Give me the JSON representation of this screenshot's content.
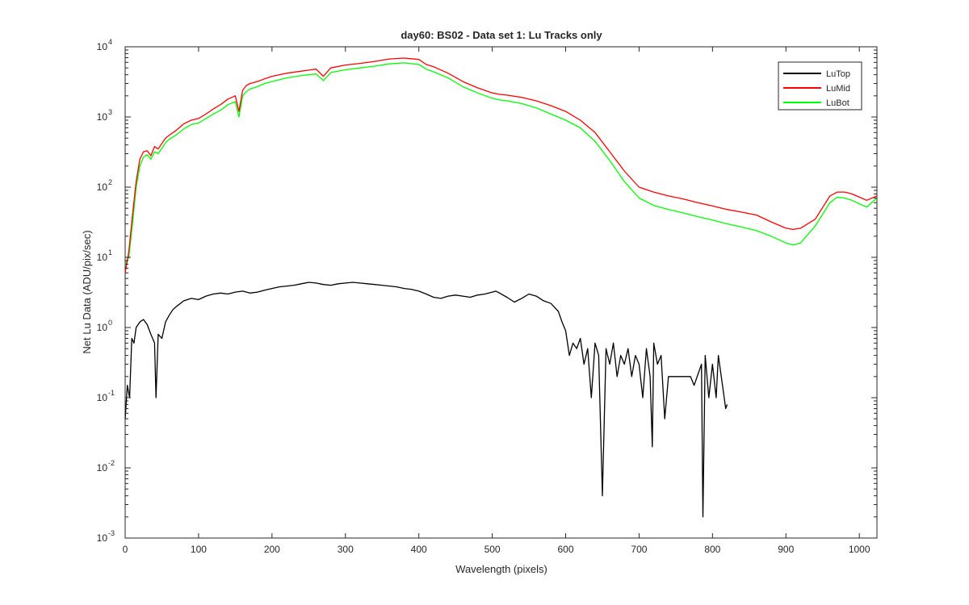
{
  "chart_data": {
    "type": "line",
    "title": "day60: BS02 - Data set 1: Lu Tracks only",
    "xlabel": "Wavelength (pixels)",
    "ylabel": "Net Lu Data (ADU/pix/sec)",
    "xlim": [
      0,
      1024
    ],
    "ylim": [
      0.001,
      10000
    ],
    "yscale": "log",
    "grid": false,
    "legend_position": "top-right",
    "x_ticks": [
      0,
      100,
      200,
      300,
      400,
      500,
      600,
      700,
      800,
      900,
      1000
    ],
    "y_ticks": [
      {
        "value": 0.001,
        "base": "10",
        "exp": "-3"
      },
      {
        "value": 0.01,
        "base": "10",
        "exp": "-2"
      },
      {
        "value": 0.1,
        "base": "10",
        "exp": "-1"
      },
      {
        "value": 1,
        "base": "10",
        "exp": "0"
      },
      {
        "value": 10,
        "base": "10",
        "exp": "1"
      },
      {
        "value": 100,
        "base": "10",
        "exp": "2"
      },
      {
        "value": 1000,
        "base": "10",
        "exp": "3"
      },
      {
        "value": 10000,
        "base": "10",
        "exp": "4"
      }
    ],
    "series": [
      {
        "name": "LuTop",
        "color": "#000000",
        "x": [
          0,
          3,
          6,
          9,
          12,
          15,
          20,
          25,
          30,
          35,
          40,
          42,
          45,
          50,
          55,
          60,
          65,
          70,
          80,
          90,
          100,
          110,
          120,
          130,
          140,
          150,
          160,
          170,
          180,
          190,
          200,
          210,
          220,
          230,
          240,
          250,
          260,
          270,
          280,
          290,
          300,
          310,
          320,
          330,
          340,
          350,
          360,
          370,
          380,
          390,
          400,
          410,
          420,
          430,
          440,
          450,
          460,
          470,
          480,
          490,
          500,
          505,
          510,
          520,
          530,
          540,
          550,
          560,
          570,
          580,
          590,
          595,
          600,
          605,
          610,
          615,
          620,
          625,
          630,
          635,
          640,
          645,
          650,
          655,
          660,
          665,
          670,
          675,
          680,
          685,
          690,
          695,
          700,
          705,
          710,
          715,
          718,
          720,
          725,
          730,
          735,
          740,
          770,
          775,
          785,
          787,
          790,
          795,
          800,
          805,
          808,
          818,
          820
        ],
        "y": [
          0.05,
          0.15,
          0.1,
          0.7,
          0.6,
          1.0,
          1.2,
          1.3,
          1.1,
          0.8,
          0.6,
          0.1,
          0.8,
          0.7,
          1.2,
          1.5,
          1.8,
          2.0,
          2.4,
          2.6,
          2.5,
          2.8,
          3.0,
          3.1,
          3.0,
          3.2,
          3.3,
          3.1,
          3.2,
          3.4,
          3.6,
          3.8,
          3.9,
          4.0,
          4.2,
          4.4,
          4.3,
          4.1,
          4.0,
          4.2,
          4.3,
          4.4,
          4.3,
          4.2,
          4.1,
          4.0,
          3.9,
          3.8,
          3.6,
          3.5,
          3.3,
          3.0,
          2.7,
          2.6,
          2.8,
          2.9,
          2.8,
          2.7,
          2.9,
          3.0,
          3.2,
          3.3,
          3.1,
          2.7,
          2.3,
          2.6,
          3.0,
          2.8,
          2.4,
          2.2,
          1.7,
          1.2,
          0.9,
          0.4,
          0.6,
          0.5,
          0.7,
          0.3,
          0.5,
          0.1,
          0.6,
          0.4,
          0.004,
          0.5,
          0.3,
          0.6,
          0.2,
          0.4,
          0.3,
          0.5,
          0.2,
          0.4,
          0.3,
          0.1,
          0.5,
          0.2,
          0.02,
          0.6,
          0.3,
          0.4,
          0.05,
          0.2,
          0.2,
          0.15,
          0.3,
          0.002,
          0.4,
          0.1,
          0.3,
          0.1,
          0.4,
          0.07,
          0.08
        ]
      },
      {
        "name": "LuMid",
        "color": "#ff0000",
        "x": [
          0,
          5,
          10,
          15,
          20,
          25,
          30,
          35,
          40,
          45,
          50,
          55,
          60,
          70,
          80,
          90,
          100,
          110,
          120,
          130,
          140,
          150,
          155,
          160,
          165,
          170,
          180,
          190,
          200,
          220,
          240,
          260,
          270,
          280,
          300,
          320,
          340,
          360,
          380,
          400,
          410,
          420,
          440,
          460,
          480,
          500,
          510,
          520,
          540,
          560,
          580,
          600,
          620,
          640,
          660,
          680,
          700,
          720,
          740,
          760,
          780,
          800,
          820,
          840,
          860,
          880,
          900,
          910,
          920,
          940,
          960,
          970,
          980,
          990,
          1000,
          1010,
          1024
        ],
        "y": [
          6,
          12,
          40,
          120,
          250,
          320,
          330,
          280,
          380,
          350,
          420,
          500,
          550,
          650,
          800,
          900,
          950,
          1100,
          1300,
          1500,
          1800,
          2000,
          1200,
          2400,
          2800,
          3000,
          3200,
          3500,
          3800,
          4200,
          4500,
          4800,
          3800,
          5000,
          5500,
          5800,
          6200,
          6700,
          6900,
          6600,
          5600,
          5200,
          4200,
          3200,
          2600,
          2200,
          2100,
          2050,
          1900,
          1700,
          1450,
          1200,
          900,
          600,
          320,
          170,
          100,
          85,
          75,
          68,
          60,
          54,
          48,
          44,
          40,
          32,
          26,
          25,
          26,
          35,
          75,
          85,
          85,
          80,
          72,
          65,
          75
        ]
      },
      {
        "name": "LuBot",
        "color": "#00ff00",
        "x": [
          0,
          5,
          10,
          15,
          20,
          25,
          30,
          35,
          40,
          45,
          50,
          55,
          60,
          70,
          80,
          90,
          100,
          110,
          120,
          130,
          140,
          150,
          155,
          160,
          165,
          170,
          180,
          190,
          200,
          220,
          240,
          260,
          270,
          280,
          300,
          320,
          340,
          360,
          380,
          400,
          410,
          420,
          440,
          460,
          480,
          500,
          510,
          520,
          540,
          560,
          580,
          600,
          620,
          640,
          660,
          680,
          700,
          720,
          740,
          760,
          780,
          800,
          820,
          840,
          860,
          880,
          900,
          910,
          920,
          940,
          960,
          970,
          980,
          990,
          1000,
          1010,
          1024
        ],
        "y": [
          8,
          10,
          30,
          100,
          200,
          270,
          290,
          250,
          320,
          300,
          360,
          430,
          480,
          560,
          680,
          780,
          820,
          950,
          1100,
          1250,
          1500,
          1650,
          1000,
          2000,
          2300,
          2500,
          2700,
          3000,
          3200,
          3600,
          3900,
          4100,
          3300,
          4300,
          4700,
          5000,
          5300,
          5700,
          5900,
          5600,
          4800,
          4400,
          3600,
          2700,
          2200,
          1850,
          1750,
          1700,
          1550,
          1350,
          1100,
          900,
          700,
          450,
          240,
          120,
          70,
          55,
          48,
          43,
          38,
          34,
          30,
          27,
          24,
          20,
          16,
          15,
          16,
          28,
          60,
          72,
          70,
          65,
          58,
          52,
          70
        ]
      }
    ]
  }
}
